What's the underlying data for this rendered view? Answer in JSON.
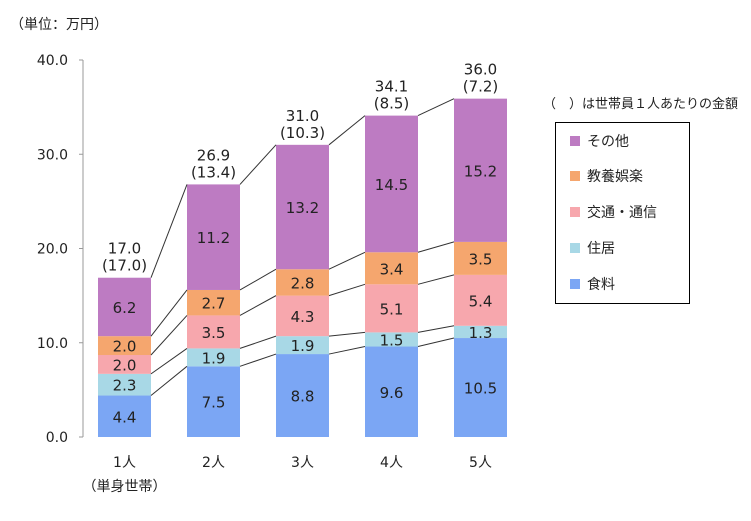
{
  "chart_data": {
    "type": "bar",
    "stacked": true,
    "unit_label": "（単位：万円）",
    "categories": [
      "1人",
      "2人",
      "3人",
      "4人",
      "5人"
    ],
    "category_sublabels": [
      "（単身世帯）",
      "",
      "",
      "",
      ""
    ],
    "series": [
      {
        "name": "食料",
        "color": "#7ba6f4",
        "values": [
          4.4,
          7.5,
          8.8,
          9.6,
          10.5
        ],
        "labels": [
          "4.4",
          "7.5",
          "8.8",
          "9.6",
          "10.5"
        ]
      },
      {
        "name": "住居",
        "color": "#a8d8e6",
        "values": [
          2.3,
          1.9,
          1.9,
          1.5,
          1.3
        ],
        "labels": [
          "2.3",
          "1.9",
          "1.9",
          "1.5",
          "1.3"
        ]
      },
      {
        "name": "交通・通信",
        "color": "#f7a7ad",
        "values": [
          2.0,
          3.5,
          4.3,
          5.1,
          5.4
        ],
        "labels": [
          "2.0",
          "3.5",
          "4.3",
          "5.1",
          "5.4"
        ]
      },
      {
        "name": "教養娯楽",
        "color": "#f5a66e",
        "values": [
          2.0,
          2.7,
          2.8,
          3.4,
          3.5
        ],
        "labels": [
          "2.0",
          "2.7",
          "2.8",
          "3.4",
          "3.5"
        ]
      },
      {
        "name": "その他",
        "color": "#bd7bc2",
        "values": [
          6.2,
          11.2,
          13.2,
          14.5,
          15.2
        ],
        "labels": [
          "6.2",
          "11.2",
          "13.2",
          "14.5",
          "15.2"
        ]
      }
    ],
    "totals": [
      "17.0",
      "26.9",
      "31.0",
      "34.1",
      "36.0"
    ],
    "per_person": [
      "(17.0)",
      "(13.4)",
      "(10.3)",
      "(8.5)",
      "(7.2)"
    ],
    "per_person_note": "（　）は世帯員１人あたりの金額",
    "yticks": [
      "0.0",
      "10.0",
      "20.0",
      "30.0",
      "40.0"
    ],
    "ylim": [
      0,
      40
    ],
    "grid": false,
    "legend_position": "right",
    "legend_order": [
      "その他",
      "教養娯楽",
      "交通・通信",
      "住居",
      "食料"
    ]
  }
}
